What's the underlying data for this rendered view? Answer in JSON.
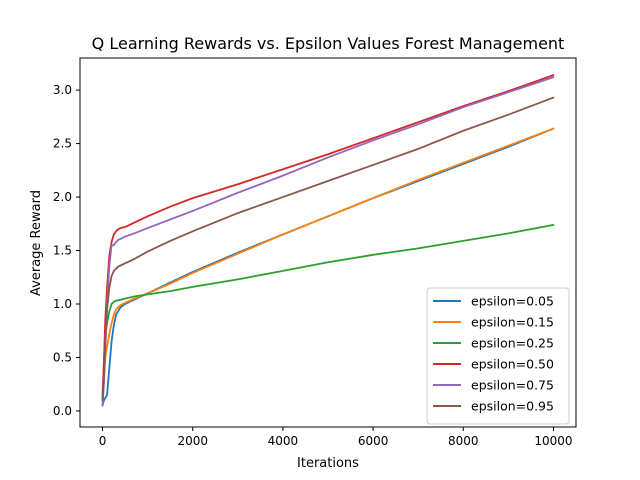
{
  "chart_data": {
    "type": "line",
    "title": "Q Learning Rewards vs. Epsilon Values Forest Management",
    "xlabel": "Iterations",
    "ylabel": "Average Reward",
    "xlim": [
      -500,
      10500
    ],
    "ylim": [
      -0.15,
      3.3
    ],
    "xticks": [
      0,
      2000,
      4000,
      6000,
      8000,
      10000
    ],
    "xtick_labels": [
      "0",
      "2000",
      "4000",
      "6000",
      "8000",
      "10000"
    ],
    "yticks": [
      0.0,
      0.5,
      1.0,
      1.5,
      2.0,
      2.5,
      3.0
    ],
    "ytick_labels": [
      "0.0",
      "0.5",
      "1.0",
      "1.5",
      "2.0",
      "2.5",
      "3.0"
    ],
    "grid": false,
    "legend_position": "lower right",
    "series": [
      {
        "name": "epsilon=0.05",
        "color": "#1f77b4",
        "x": [
          0,
          30,
          60,
          100,
          150,
          200,
          250,
          300,
          400,
          500,
          700,
          1000,
          1500,
          2000,
          3000,
          4000,
          5000,
          6000,
          7000,
          8000,
          9000,
          10000
        ],
        "y": [
          0.05,
          0.1,
          0.12,
          0.15,
          0.4,
          0.65,
          0.8,
          0.9,
          0.97,
          1.0,
          1.04,
          1.1,
          1.2,
          1.3,
          1.48,
          1.65,
          1.82,
          1.99,
          2.15,
          2.31,
          2.47,
          2.64
        ]
      },
      {
        "name": "epsilon=0.15",
        "color": "#ff7f0e",
        "x": [
          0,
          30,
          60,
          100,
          150,
          200,
          250,
          300,
          400,
          500,
          700,
          1000,
          1500,
          2000,
          3000,
          4000,
          5000,
          6000,
          7000,
          8000,
          9000,
          10000
        ],
        "y": [
          0.1,
          0.3,
          0.5,
          0.6,
          0.72,
          0.82,
          0.9,
          0.95,
          0.99,
          1.01,
          1.05,
          1.1,
          1.19,
          1.29,
          1.47,
          1.65,
          1.82,
          1.99,
          2.16,
          2.32,
          2.48,
          2.64
        ]
      },
      {
        "name": "epsilon=0.25",
        "color": "#2ca02c",
        "x": [
          0,
          30,
          60,
          100,
          150,
          200,
          250,
          300,
          400,
          500,
          700,
          1000,
          1500,
          2000,
          3000,
          4000,
          5000,
          6000,
          7000,
          8000,
          9000,
          10000
        ],
        "y": [
          0.1,
          0.45,
          0.7,
          0.82,
          0.93,
          1.0,
          1.02,
          1.03,
          1.04,
          1.05,
          1.07,
          1.09,
          1.12,
          1.16,
          1.23,
          1.31,
          1.39,
          1.46,
          1.52,
          1.59,
          1.66,
          1.74
        ]
      },
      {
        "name": "epsilon=0.50",
        "color": "#d62728",
        "x": [
          0,
          30,
          60,
          100,
          150,
          200,
          250,
          300,
          350,
          400,
          500,
          700,
          1000,
          1500,
          2000,
          3000,
          4000,
          5000,
          6000,
          7000,
          8000,
          9000,
          10000
        ],
        "y": [
          0.15,
          0.45,
          0.85,
          1.15,
          1.45,
          1.58,
          1.65,
          1.68,
          1.7,
          1.71,
          1.72,
          1.76,
          1.82,
          1.91,
          1.99,
          2.12,
          2.26,
          2.4,
          2.55,
          2.7,
          2.85,
          2.99,
          3.14
        ]
      },
      {
        "name": "epsilon=0.75",
        "color": "#9467bd",
        "x": [
          0,
          30,
          60,
          100,
          150,
          200,
          250,
          300,
          350,
          400,
          500,
          700,
          1000,
          1500,
          2000,
          3000,
          4000,
          5000,
          6000,
          7000,
          8000,
          9000,
          10000
        ],
        "y": [
          0.05,
          0.25,
          0.6,
          1.0,
          1.35,
          1.55,
          1.55,
          1.58,
          1.6,
          1.61,
          1.63,
          1.66,
          1.71,
          1.79,
          1.87,
          2.04,
          2.2,
          2.37,
          2.53,
          2.68,
          2.84,
          2.98,
          3.12
        ]
      },
      {
        "name": "epsilon=0.95",
        "color": "#8c564b",
        "x": [
          0,
          30,
          60,
          100,
          150,
          200,
          250,
          300,
          350,
          400,
          500,
          700,
          1000,
          1500,
          2000,
          3000,
          4000,
          5000,
          6000,
          7000,
          8000,
          9000,
          10000
        ],
        "y": [
          0.1,
          0.3,
          0.6,
          0.95,
          1.15,
          1.26,
          1.31,
          1.33,
          1.35,
          1.36,
          1.38,
          1.42,
          1.49,
          1.59,
          1.68,
          1.85,
          2.0,
          2.15,
          2.3,
          2.45,
          2.62,
          2.77,
          2.93
        ]
      }
    ]
  }
}
